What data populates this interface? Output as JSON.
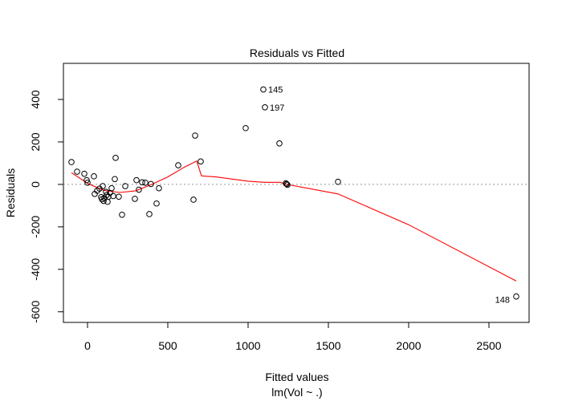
{
  "chart_data": {
    "type": "scatter",
    "title": "Residuals vs Fitted",
    "xlabel": "Fitted values",
    "xlabel_sub": "lm(Vol ~ .)",
    "ylabel": "Residuals",
    "xlim": [
      -150,
      2750
    ],
    "ylim": [
      -650,
      570
    ],
    "xticks": [
      0,
      500,
      1000,
      1500,
      2000,
      2500
    ],
    "xtick_labels": [
      "0",
      "500",
      "1000",
      "1500",
      "2000",
      "2500"
    ],
    "yticks": [
      -600,
      -400,
      -200,
      0,
      200,
      400
    ],
    "ytick_labels": [
      "-600",
      "-400",
      "-200",
      "0",
      "200",
      "400"
    ],
    "reference_line": {
      "y": 0,
      "style": "dotted",
      "color": "#999999"
    },
    "grid": false,
    "colors": {
      "points": "#000000",
      "smoother": "#ff0000",
      "axes": "#000000"
    },
    "points": [
      {
        "x": 1095,
        "y": 447,
        "label": "145"
      },
      {
        "x": 1105,
        "y": 363,
        "label": "197"
      },
      {
        "x": 2670,
        "y": -528,
        "label": "148"
      },
      {
        "x": 985,
        "y": 265
      },
      {
        "x": 1195,
        "y": 193
      },
      {
        "x": 670,
        "y": 230
      },
      {
        "x": 565,
        "y": 90
      },
      {
        "x": 705,
        "y": 108
      },
      {
        "x": 660,
        "y": -72
      },
      {
        "x": 1560,
        "y": 12
      },
      {
        "x": 1235,
        "y": 5
      },
      {
        "x": 1240,
        "y": 2
      },
      {
        "x": 1245,
        "y": -2
      },
      {
        "x": -100,
        "y": 105
      },
      {
        "x": -65,
        "y": 60
      },
      {
        "x": -20,
        "y": 50
      },
      {
        "x": -5,
        "y": 20
      },
      {
        "x": 0,
        "y": 8
      },
      {
        "x": 40,
        "y": 38
      },
      {
        "x": 45,
        "y": -45
      },
      {
        "x": 60,
        "y": -30
      },
      {
        "x": 75,
        "y": -20
      },
      {
        "x": 85,
        "y": -60
      },
      {
        "x": 90,
        "y": -70
      },
      {
        "x": 95,
        "y": -8
      },
      {
        "x": 100,
        "y": -78
      },
      {
        "x": 105,
        "y": -65
      },
      {
        "x": 115,
        "y": -35
      },
      {
        "x": 120,
        "y": -50
      },
      {
        "x": 125,
        "y": -82
      },
      {
        "x": 130,
        "y": -58
      },
      {
        "x": 140,
        "y": -40
      },
      {
        "x": 150,
        "y": -18
      },
      {
        "x": 160,
        "y": -55
      },
      {
        "x": 170,
        "y": 25
      },
      {
        "x": 175,
        "y": 125
      },
      {
        "x": 195,
        "y": -58
      },
      {
        "x": 215,
        "y": -143
      },
      {
        "x": 235,
        "y": -8
      },
      {
        "x": 295,
        "y": -68
      },
      {
        "x": 305,
        "y": 20
      },
      {
        "x": 320,
        "y": -25
      },
      {
        "x": 340,
        "y": 10
      },
      {
        "x": 360,
        "y": 8
      },
      {
        "x": 385,
        "y": -140
      },
      {
        "x": 395,
        "y": 2
      },
      {
        "x": 430,
        "y": -90
      },
      {
        "x": 445,
        "y": -18
      }
    ],
    "smoother": {
      "name": "smoother",
      "x": [
        -100,
        0,
        100,
        200,
        300,
        400,
        500,
        600,
        680,
        710,
        800,
        1000,
        1100,
        1200,
        1240,
        1560,
        2000,
        2670
      ],
      "y": [
        55,
        5,
        -28,
        -38,
        -30,
        0,
        35,
        80,
        110,
        40,
        35,
        15,
        10,
        10,
        0,
        -45,
        -190,
        -455
      ]
    }
  }
}
